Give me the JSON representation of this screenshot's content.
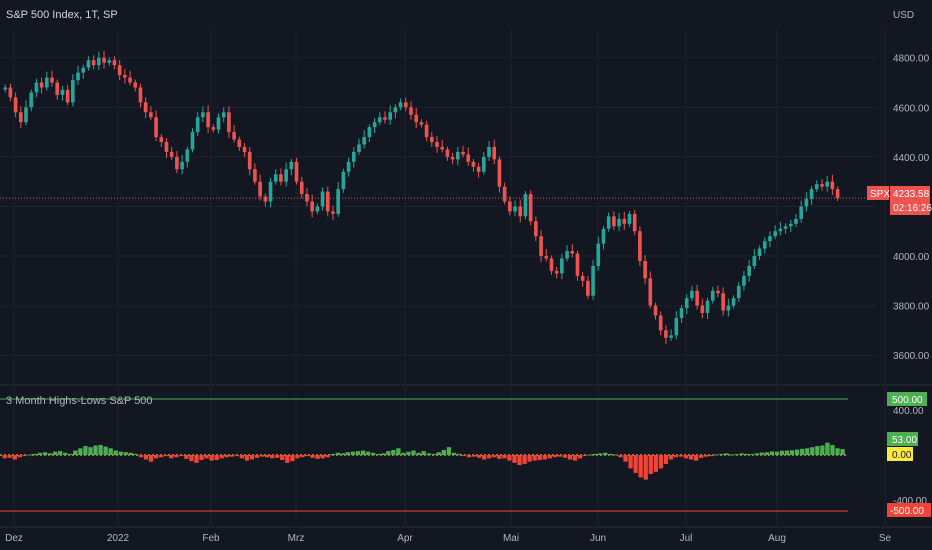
{
  "header": {
    "title": "S&P 500 Index, 1T, SP"
  },
  "currency": "USD",
  "indicator": {
    "title": "3 Month Highs-Lows S&P 500"
  },
  "badges": {
    "symbol": "SPX",
    "last_price": "4233.58",
    "countdown": "02:16:26",
    "upper_line": "500.00",
    "current": "53.00",
    "zero": "0.00",
    "lower_line": "-500.00"
  },
  "colors": {
    "up": "#26a69a",
    "down": "#ef5350",
    "hist_up": "#4caf50",
    "hist_down": "#f44336",
    "zero_badge": "#ffeb3b"
  },
  "chart_data": [
    {
      "type": "candlestick",
      "title": "S&P 500 Index, 1T, SP",
      "ylabel": "USD",
      "ylim": [
        3520,
        4920
      ],
      "y_ticks": [
        3600,
        3800,
        4000,
        4200,
        4400,
        4600,
        4800
      ],
      "y_tick_labels": [
        "3600.00",
        "3800.00",
        "4000.00",
        "4200.00",
        "4400.00",
        "4600.00",
        "4800.00"
      ],
      "x_ticks": [
        "Dez",
        "2022",
        "Feb",
        "Mrz",
        "Apr",
        "Mai",
        "Jun",
        "Jul",
        "Aug",
        "Se"
      ],
      "last_price": 4233.58,
      "closes": [
        4680,
        4640,
        4580,
        4540,
        4600,
        4660,
        4700,
        4680,
        4720,
        4700,
        4650,
        4670,
        4620,
        4710,
        4740,
        4760,
        4790,
        4770,
        4800,
        4780,
        4790,
        4770,
        4730,
        4720,
        4700,
        4680,
        4620,
        4580,
        4560,
        4480,
        4460,
        4420,
        4400,
        4350,
        4380,
        4430,
        4500,
        4560,
        4580,
        4520,
        4510,
        4560,
        4580,
        4500,
        4470,
        4440,
        4420,
        4350,
        4300,
        4240,
        4220,
        4300,
        4330,
        4300,
        4350,
        4380,
        4300,
        4250,
        4220,
        4180,
        4200,
        4260,
        4180,
        4170,
        4270,
        4340,
        4380,
        4420,
        4450,
        4480,
        4520,
        4540,
        4560,
        4550,
        4580,
        4600,
        4620,
        4600,
        4570,
        4540,
        4530,
        4480,
        4460,
        4440,
        4430,
        4400,
        4390,
        4420,
        4410,
        4380,
        4360,
        4340,
        4400,
        4440,
        4390,
        4280,
        4220,
        4180,
        4200,
        4160,
        4250,
        4140,
        4080,
        4000,
        3990,
        3940,
        3930,
        3990,
        4020,
        4010,
        3920,
        3900,
        3840,
        3960,
        4050,
        4110,
        4160,
        4120,
        4150,
        4130,
        4170,
        4100,
        3980,
        3910,
        3800,
        3760,
        3700,
        3670,
        3680,
        3750,
        3790,
        3830,
        3860,
        3800,
        3770,
        3820,
        3860,
        3850,
        3780,
        3800,
        3830,
        3880,
        3920,
        3960,
        4000,
        4030,
        4060,
        4080,
        4100,
        4110,
        4120,
        4130,
        4150,
        4200,
        4230,
        4270,
        4290,
        4280,
        4300,
        4270,
        4233.58
      ]
    },
    {
      "type": "bar",
      "title": "3 Month Highs-Lows S&P 500",
      "ylim": [
        -530,
        530
      ],
      "y_tick_labels": [
        "400.00",
        "-400.00"
      ],
      "reference_lines": [
        500,
        0,
        -500
      ],
      "last_value": 53,
      "values": [
        -30,
        -25,
        -40,
        -20,
        -10,
        5,
        10,
        20,
        25,
        15,
        30,
        35,
        20,
        10,
        40,
        60,
        80,
        70,
        85,
        90,
        75,
        60,
        40,
        30,
        25,
        20,
        10,
        -20,
        -40,
        -60,
        -30,
        -20,
        -10,
        -30,
        -20,
        -10,
        -35,
        -55,
        -70,
        -45,
        -30,
        -50,
        -45,
        -30,
        -20,
        -15,
        -10,
        -30,
        -50,
        -40,
        -25,
        -15,
        -20,
        -30,
        -25,
        -45,
        -70,
        -55,
        -30,
        -20,
        -10,
        -25,
        -35,
        -30,
        -20,
        10,
        20,
        15,
        25,
        30,
        35,
        40,
        30,
        20,
        10,
        15,
        35,
        45,
        60,
        20,
        30,
        40,
        20,
        35,
        15,
        10,
        25,
        45,
        70,
        20,
        10,
        -10,
        -20,
        -15,
        -25,
        -40,
        -30,
        -20,
        -35,
        -30,
        -50,
        -70,
        -90,
        -80,
        -60,
        -50,
        -45,
        -40,
        -30,
        -20,
        -15,
        -25,
        -40,
        -50,
        -30,
        -10,
        5,
        10,
        15,
        20,
        10,
        5,
        -20,
        -60,
        -120,
        -160,
        -200,
        -220,
        -170,
        -150,
        -120,
        -80,
        -40,
        -20,
        -15,
        -30,
        -40,
        -50,
        -25,
        -15,
        -10,
        5,
        10,
        15,
        5,
        8,
        15,
        10,
        8,
        15,
        22,
        25,
        32,
        30,
        38,
        40,
        42,
        48,
        55,
        60,
        70,
        80,
        85,
        110,
        90,
        60,
        53
      ]
    }
  ]
}
